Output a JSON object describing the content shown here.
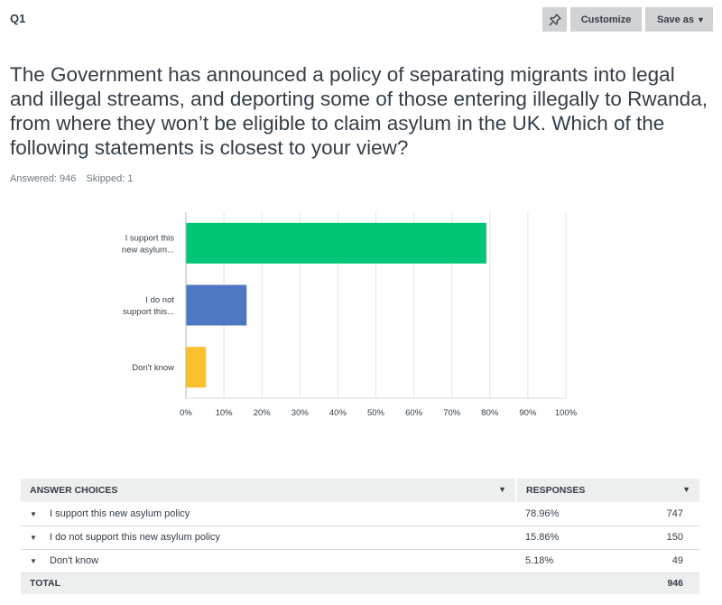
{
  "question_label": "Q1",
  "toolbar": {
    "pin_icon": "pushpin-icon",
    "customize_label": "Customize",
    "save_label": "Save as"
  },
  "question_text": "The Government has announced a policy of separating migrants into legal and illegal streams, and deporting some of those entering illegally to Rwanda, from where they won’t be eligible to claim asylum in the UK. Which of the following statements is closest to your view?",
  "meta": {
    "answered": "Answered: 946",
    "skipped": "Skipped: 1"
  },
  "chart_data": {
    "type": "bar",
    "orientation": "horizontal",
    "categories": [
      [
        "I support this",
        "new asylum..."
      ],
      [
        "I do not",
        "support this..."
      ],
      [
        "Don't know"
      ]
    ],
    "values": [
      78.96,
      15.86,
      5.18
    ],
    "colors": [
      "#00c675",
      "#4e78c2",
      "#fbc02d"
    ],
    "xlim": [
      0,
      100
    ],
    "xticks": [
      "0%",
      "10%",
      "20%",
      "30%",
      "40%",
      "50%",
      "60%",
      "70%",
      "80%",
      "90%",
      "100%"
    ],
    "grid": true
  },
  "table": {
    "headers": {
      "answer": "ANSWER CHOICES",
      "responses": "RESPONSES"
    },
    "rows": [
      {
        "answer": "I support this new asylum policy",
        "pct": "78.96%",
        "count": "747"
      },
      {
        "answer": "I do not support this new asylum policy",
        "pct": "15.86%",
        "count": "150"
      },
      {
        "answer": "Don't know",
        "pct": "5.18%",
        "count": "49"
      }
    ],
    "total": {
      "label": "TOTAL",
      "count": "946"
    }
  }
}
